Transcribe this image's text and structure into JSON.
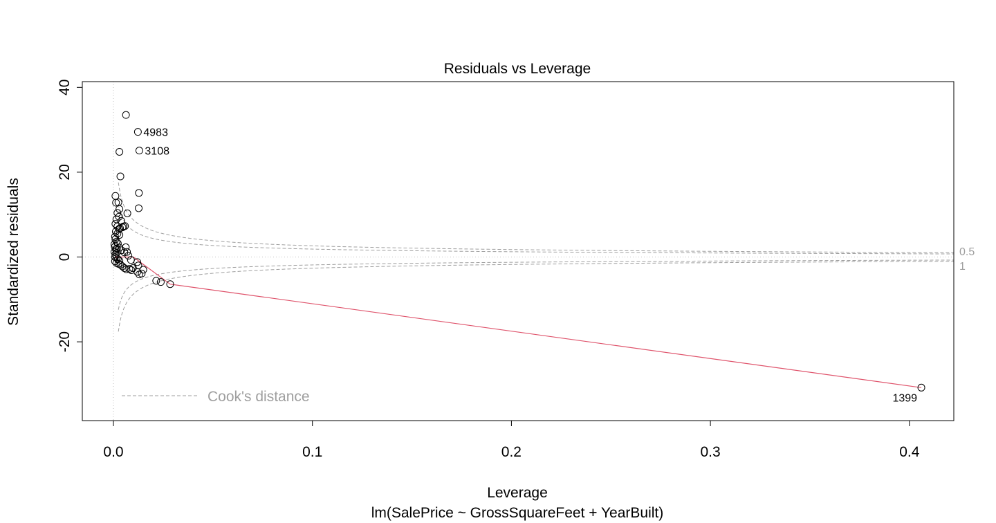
{
  "chart_data": {
    "type": "scatter",
    "title": "Residuals vs Leverage",
    "xlabel": "Leverage",
    "subtitle": "lm(SalePrice ~ GrossSquareFeet + YearBuilt)",
    "ylabel": "Standardized residuals",
    "xlim": [
      -0.016,
      0.422
    ],
    "ylim": [
      -38.5,
      41.5
    ],
    "xticks": [
      0.0,
      0.1,
      0.2,
      0.3,
      0.4
    ],
    "xtick_labels": [
      "0.0",
      "0.1",
      "0.2",
      "0.3",
      "0.4"
    ],
    "yticks": [
      -20,
      0,
      20,
      40
    ],
    "ytick_labels": [
      "-20",
      "0",
      "20",
      "40"
    ],
    "grid": false,
    "points": [
      [
        0.0063,
        33.5
      ],
      [
        0.0123,
        29.5
      ],
      [
        0.013,
        25.1
      ],
      [
        0.003,
        24.8
      ],
      [
        0.0035,
        19.0
      ],
      [
        0.0128,
        15.1
      ],
      [
        0.0127,
        11.5
      ],
      [
        0.007,
        10.3
      ],
      [
        0.001,
        14.4
      ],
      [
        0.0013,
        12.8
      ],
      [
        0.0025,
        12.9
      ],
      [
        0.003,
        11.3
      ],
      [
        0.002,
        10.4
      ],
      [
        0.0028,
        9.5
      ],
      [
        0.0015,
        8.9
      ],
      [
        0.004,
        8.5
      ],
      [
        0.001,
        7.8
      ],
      [
        0.002,
        7.2
      ],
      [
        0.0028,
        6.6
      ],
      [
        0.0045,
        7.0
      ],
      [
        0.005,
        7.2
      ],
      [
        0.0058,
        7.3
      ],
      [
        0.0033,
        6.8
      ],
      [
        0.0012,
        6.0
      ],
      [
        0.002,
        5.5
      ],
      [
        0.003,
        5.2
      ],
      [
        0.0008,
        4.8
      ],
      [
        0.001,
        4.2
      ],
      [
        0.0015,
        3.6
      ],
      [
        0.0005,
        3.0
      ],
      [
        0.0022,
        3.2
      ],
      [
        0.0007,
        2.4
      ],
      [
        0.0012,
        1.8
      ],
      [
        0.0018,
        2.0
      ],
      [
        0.003,
        2.2
      ],
      [
        0.0005,
        1.2
      ],
      [
        0.001,
        0.6
      ],
      [
        0.0016,
        1.0
      ],
      [
        0.004,
        1.6
      ],
      [
        0.0055,
        1.1
      ],
      [
        0.0008,
        0.0
      ],
      [
        0.0015,
        -0.2
      ],
      [
        0.0022,
        -0.5
      ],
      [
        0.003,
        -0.9
      ],
      [
        0.0008,
        -1.0
      ],
      [
        0.0015,
        -1.4
      ],
      [
        0.0025,
        -1.6
      ],
      [
        0.0035,
        -1.8
      ],
      [
        0.0045,
        -2.2
      ],
      [
        0.0055,
        -2.6
      ],
      [
        0.0065,
        -2.9
      ],
      [
        0.008,
        -2.8
      ],
      [
        0.0062,
        2.3
      ],
      [
        0.0068,
        1.2
      ],
      [
        0.0075,
        0.3
      ],
      [
        0.0088,
        -0.7
      ],
      [
        0.0098,
        -2.6
      ],
      [
        0.009,
        -3.1
      ],
      [
        0.012,
        -1.2
      ],
      [
        0.0125,
        -2.0
      ],
      [
        0.012,
        -3.5
      ],
      [
        0.013,
        -4.1
      ],
      [
        0.015,
        -3.0
      ],
      [
        0.0142,
        -3.9
      ],
      [
        0.0215,
        -5.6
      ],
      [
        0.0238,
        -5.9
      ],
      [
        0.0285,
        -6.4
      ],
      [
        0.406,
        -30.8
      ]
    ],
    "labeled_points": [
      {
        "label": "4983",
        "x": 0.0123,
        "y": 29.5
      },
      {
        "label": "3108",
        "x": 0.013,
        "y": 25.1
      },
      {
        "label": "1399",
        "x": 0.406,
        "y": -30.8
      }
    ],
    "smooth_line": [
      [
        0.0008,
        0.0
      ],
      [
        0.01,
        0.0
      ],
      [
        0.0285,
        -6.4
      ],
      [
        0.406,
        -30.8
      ]
    ],
    "cooks_contours": [
      {
        "label": "0.5",
        "level": 0.5
      },
      {
        "label": "1",
        "level": 1
      }
    ],
    "contour_constant": 0.88,
    "legend": {
      "label": "Cook's distance",
      "position": "bottom-left"
    },
    "colors": {
      "points": "#000000",
      "smooth": "#df536b",
      "cooks": "#9e9e9e",
      "refline": "#bebebe"
    }
  }
}
